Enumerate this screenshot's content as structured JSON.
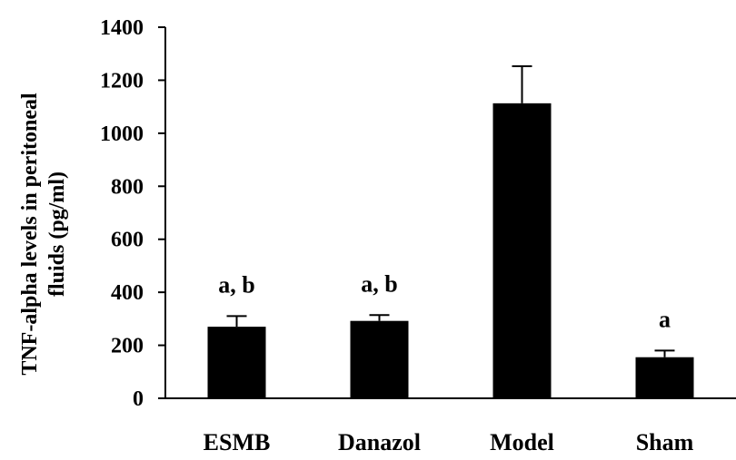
{
  "chart_data": {
    "type": "bar",
    "title": "",
    "xlabel": "",
    "ylabel_line1": "TNF-alpha levels in peritoneal",
    "ylabel_line2": "fluids (pg/ml)",
    "ylim": [
      0,
      1400
    ],
    "yticks": [
      0,
      200,
      400,
      600,
      800,
      1000,
      1200,
      1400
    ],
    "grid": false,
    "categories": [
      "ESMB",
      "Danazol",
      "Model",
      "Sham"
    ],
    "values": [
      270,
      292,
      1113,
      155
    ],
    "error": [
      40,
      22,
      140,
      25
    ],
    "annotations": [
      "a, b",
      "a, b",
      "",
      "a"
    ],
    "bar_color": "#000000"
  }
}
